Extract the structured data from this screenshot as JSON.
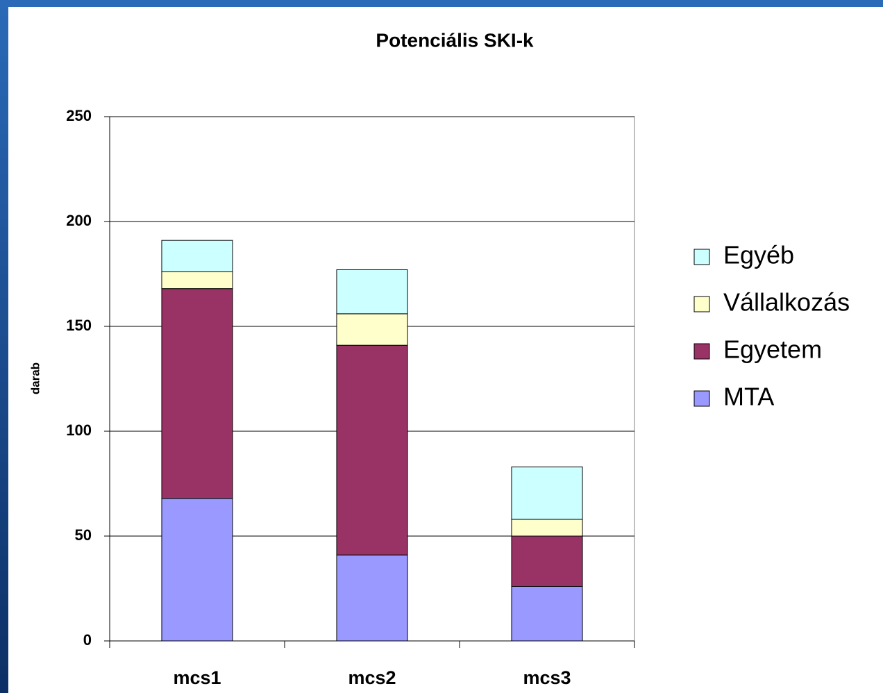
{
  "chart_data": {
    "type": "stacked_bar",
    "title": "Potenciális SKI-k",
    "y_label": "darab",
    "categories": [
      "mcs1",
      "mcs2",
      "mcs3"
    ],
    "series": [
      {
        "name": "MTA",
        "color": "#9999ff",
        "values": [
          68,
          41,
          26
        ]
      },
      {
        "name": "Egyetem",
        "color": "#993366",
        "values": [
          100,
          100,
          24
        ]
      },
      {
        "name": "Vállalkozás",
        "color": "#ffffcc",
        "values": [
          8,
          15,
          8
        ]
      },
      {
        "name": "Egyéb",
        "color": "#ccffff",
        "values": [
          15,
          21,
          25
        ]
      }
    ],
    "ylim": [
      0,
      250
    ],
    "yticks": [
      0,
      50,
      100,
      150,
      200,
      250
    ],
    "grid": true,
    "legend": "right"
  }
}
